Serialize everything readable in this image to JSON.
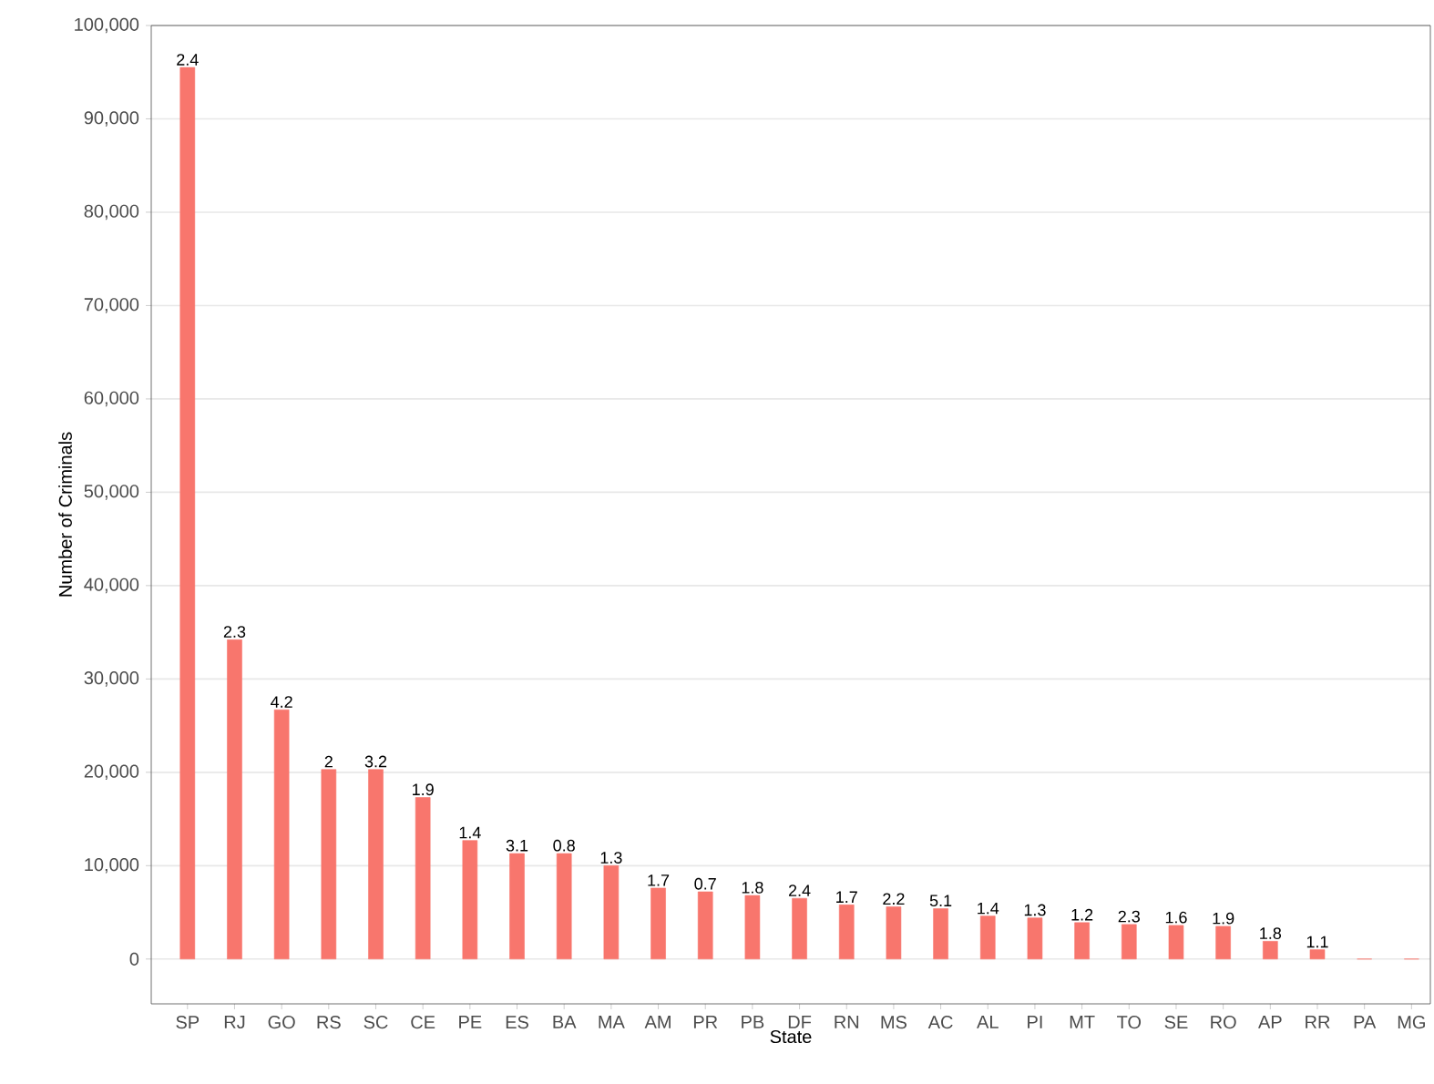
{
  "chart_data": {
    "type": "bar",
    "xlabel": "State",
    "ylabel": "Number of Criminals",
    "categories": [
      "SP",
      "RJ",
      "GO",
      "RS",
      "SC",
      "CE",
      "PE",
      "ES",
      "BA",
      "MA",
      "AM",
      "PR",
      "PB",
      "DF",
      "RN",
      "MS",
      "AC",
      "AL",
      "PI",
      "MT",
      "TO",
      "SE",
      "RO",
      "AP",
      "RR",
      "PA",
      "MG"
    ],
    "values": [
      95500,
      34200,
      26700,
      20300,
      20300,
      17300,
      12700,
      11300,
      11300,
      10000,
      7600,
      7200,
      6800,
      6500,
      5800,
      5600,
      5400,
      4600,
      4400,
      3900,
      3700,
      3600,
      3500,
      1900,
      1000,
      0,
      0
    ],
    "annotations": [
      {
        "text": "2.4",
        "x": "SP",
        "y": 95500
      },
      {
        "text": "2.3",
        "x": "RJ",
        "y": 34200
      },
      {
        "text": "4.2",
        "x": "GO",
        "y": 26700
      },
      {
        "text": "2",
        "x": "RS",
        "y": 20300
      },
      {
        "text": "3.2",
        "x": "SC",
        "y": 20300
      },
      {
        "text": "1.9",
        "x": "CE",
        "y": 17300
      },
      {
        "text": "1.4",
        "x": "PE",
        "y": 12700
      },
      {
        "text": "3.1",
        "x": "ES",
        "y": 11300
      },
      {
        "text": "0.8",
        "x": "BA",
        "y": 11300
      },
      {
        "text": "1.3",
        "x": "MA",
        "y": 10000
      },
      {
        "text": "1.7",
        "x": "AM",
        "y": 7600
      },
      {
        "text": "0.7",
        "x": "PR",
        "y": 7200
      },
      {
        "text": "1.8",
        "x": "PB",
        "y": 6800
      },
      {
        "text": "2.4",
        "x": "DF",
        "y": 6500
      },
      {
        "text": "1.7",
        "x": "RN",
        "y": 5800
      },
      {
        "text": "2.2",
        "x": "MS",
        "y": 5600
      },
      {
        "text": "5.1",
        "x": "AC",
        "y": 5400
      },
      {
        "text": "1.4",
        "x": "AL",
        "y": 4600
      },
      {
        "text": "1.3",
        "x": "PI",
        "y": 4400
      },
      {
        "text": "1.2",
        "x": "MT",
        "y": 3900
      },
      {
        "text": "2.3",
        "x": "TO",
        "y": 3700
      },
      {
        "text": "1.6",
        "x": "SE",
        "y": 3600
      },
      {
        "text": "1.9",
        "x": "RO",
        "y": 3500
      },
      {
        "text": "1.8",
        "x": "AP",
        "y": 1900
      },
      {
        "text": "1.1",
        "x": "RR",
        "y": 1000
      }
    ],
    "color": "#f8766d",
    "ylim": [
      -4800,
      100000
    ],
    "yticks": [
      {
        "value": 0,
        "label": "0"
      },
      {
        "value": 10000,
        "label": "10,000"
      },
      {
        "value": 20000,
        "label": "20,000"
      },
      {
        "value": 30000,
        "label": "30,000"
      },
      {
        "value": 40000,
        "label": "40,000"
      },
      {
        "value": 50000,
        "label": "50,000"
      },
      {
        "value": 60000,
        "label": "60,000"
      },
      {
        "value": 70000,
        "label": "70,000"
      },
      {
        "value": 80000,
        "label": "80,000"
      },
      {
        "value": 90000,
        "label": "90,000"
      },
      {
        "value": 100000,
        "label": "100,000"
      }
    ],
    "grid": "y"
  }
}
